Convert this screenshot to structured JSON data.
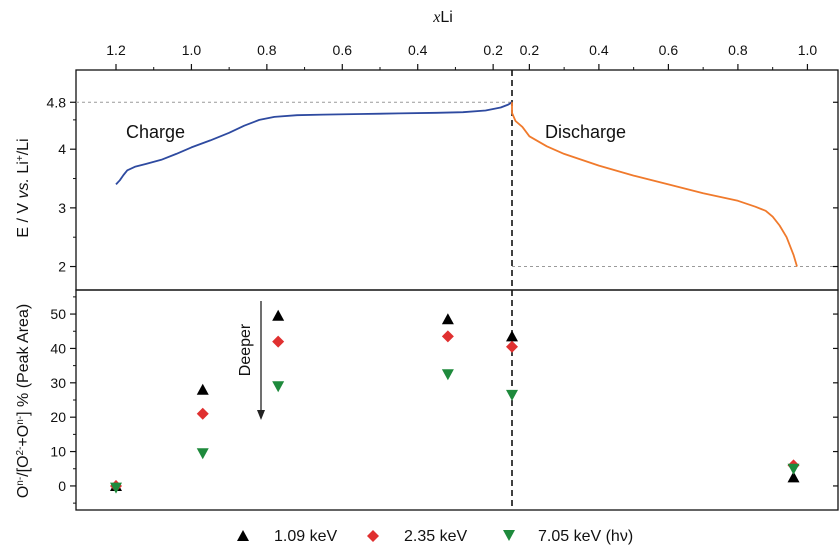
{
  "chart_data": [
    {
      "type": "line",
      "panel": "top",
      "ylabel": "E / V vs. Li+/Li",
      "top_axis_label": "xLi",
      "top_axis_ticks_charge": [
        "1.2",
        "1.0",
        "0.8",
        "0.6",
        "0.4",
        "0.2"
      ],
      "top_axis_ticks_discharge": [
        "0.2",
        "0.4",
        "0.6",
        "0.8",
        "1.0"
      ],
      "y_ticks": [
        "2",
        "3",
        "4",
        "4.8"
      ],
      "ylim": [
        1.6,
        5.35
      ],
      "reference_lines": [
        4.8,
        2.0
      ],
      "divider_x": 0.15,
      "series": [
        {
          "name": "Charge",
          "color": "#2e4aa0",
          "x": [
            1.2,
            1.19,
            1.18,
            1.17,
            1.15,
            1.12,
            1.08,
            1.04,
            1.0,
            0.95,
            0.9,
            0.86,
            0.82,
            0.78,
            0.72,
            0.65,
            0.55,
            0.45,
            0.35,
            0.28,
            0.22,
            0.18,
            0.16,
            0.15
          ],
          "y": [
            3.4,
            3.47,
            3.56,
            3.64,
            3.7,
            3.75,
            3.82,
            3.92,
            4.03,
            4.15,
            4.28,
            4.4,
            4.5,
            4.55,
            4.58,
            4.59,
            4.6,
            4.61,
            4.62,
            4.63,
            4.66,
            4.71,
            4.76,
            4.8
          ]
        },
        {
          "name": "Discharge",
          "color": "#f07a2c",
          "x": [
            0.15,
            0.15,
            0.16,
            0.18,
            0.2,
            0.25,
            0.3,
            0.4,
            0.5,
            0.6,
            0.7,
            0.8,
            0.85,
            0.88,
            0.9,
            0.92,
            0.94,
            0.96,
            0.97
          ],
          "y": [
            4.8,
            4.62,
            4.48,
            4.38,
            4.22,
            4.05,
            3.92,
            3.72,
            3.55,
            3.4,
            3.25,
            3.12,
            3.02,
            2.95,
            2.85,
            2.7,
            2.5,
            2.2,
            2.0
          ]
        }
      ]
    },
    {
      "type": "scatter",
      "panel": "bottom",
      "ylabel": "On-/[O2-+On-] % (Peak Area)",
      "y_ticks": [
        "0",
        "10",
        "20",
        "30",
        "40",
        "50"
      ],
      "ylim": [
        -7,
        57
      ],
      "annotation": "Deeper",
      "legend_placement": "bottom",
      "series": [
        {
          "name": "1.09 keV",
          "color": "#000000",
          "marker": "triangle-up",
          "points": [
            {
              "state": "charge",
              "xLi": 1.2,
              "value": 0
            },
            {
              "state": "charge",
              "xLi": 0.97,
              "value": 28
            },
            {
              "state": "charge",
              "xLi": 0.77,
              "value": 49.5
            },
            {
              "state": "charge",
              "xLi": 0.32,
              "value": 48.5
            },
            {
              "state": "charge",
              "xLi": 0.15,
              "value": 43.5
            },
            {
              "state": "discharge",
              "xLi": 0.96,
              "value": 2.5
            }
          ]
        },
        {
          "name": "2.35 keV",
          "color": "#e03030",
          "marker": "diamond",
          "points": [
            {
              "state": "charge",
              "xLi": 1.2,
              "value": 0
            },
            {
              "state": "charge",
              "xLi": 0.97,
              "value": 21
            },
            {
              "state": "charge",
              "xLi": 0.77,
              "value": 42
            },
            {
              "state": "charge",
              "xLi": 0.32,
              "value": 43.5
            },
            {
              "state": "charge",
              "xLi": 0.15,
              "value": 40.5
            },
            {
              "state": "discharge",
              "xLi": 0.96,
              "value": 6
            }
          ]
        },
        {
          "name": "7.05 keV (hν)",
          "color": "#1e8a3c",
          "marker": "triangle-down",
          "points": [
            {
              "state": "charge",
              "xLi": 1.2,
              "value": -0.5
            },
            {
              "state": "charge",
              "xLi": 0.97,
              "value": 9.5
            },
            {
              "state": "charge",
              "xLi": 0.77,
              "value": 29
            },
            {
              "state": "charge",
              "xLi": 0.32,
              "value": 32.5
            },
            {
              "state": "charge",
              "xLi": 0.15,
              "value": 26.5
            },
            {
              "state": "discharge",
              "xLi": 0.96,
              "value": 5
            }
          ]
        }
      ]
    }
  ]
}
